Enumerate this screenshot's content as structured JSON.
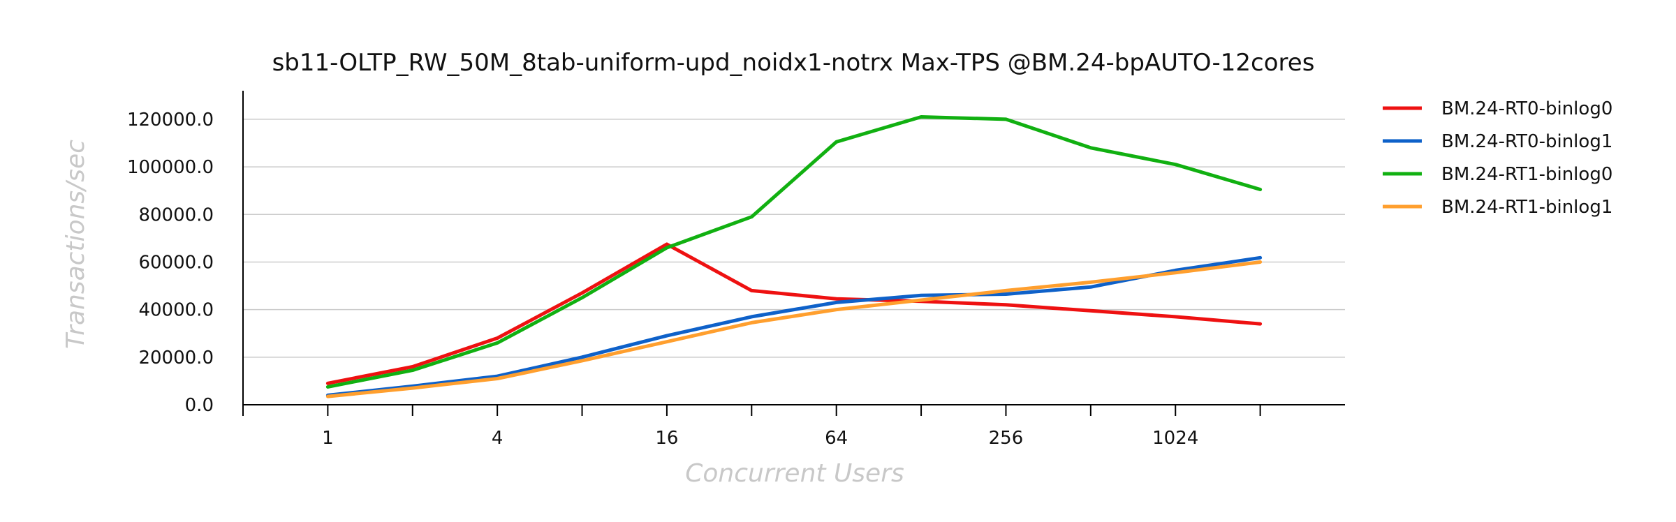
{
  "chart_data": {
    "type": "line",
    "title": "sb11-OLTP_RW_50M_8tab-uniform-upd_noidx1-notrx Max-TPS @BM.24-bpAUTO-12cores",
    "xlabel": "Concurrent Users",
    "ylabel": "Transactions/sec",
    "x": [
      1,
      2,
      4,
      8,
      16,
      32,
      64,
      128,
      256,
      512,
      1024,
      2048
    ],
    "x_scale": "log2",
    "xlim": [
      0.5,
      4096
    ],
    "x_ticks": [
      1,
      4,
      16,
      64,
      256,
      1024
    ],
    "x_tick_labels": [
      "1",
      "4",
      "16",
      "64",
      "256",
      "1024"
    ],
    "ylim": [
      0,
      132000
    ],
    "y_ticks": [
      0,
      20000,
      40000,
      60000,
      80000,
      100000,
      120000
    ],
    "y_tick_labels": [
      "0.0",
      "20000.0",
      "40000.0",
      "60000.0",
      "80000.0",
      "100000.0",
      "120000.0"
    ],
    "grid": true,
    "legend_position": "right",
    "series": [
      {
        "name": "BM.24-RT0-binlog0",
        "color": "#ee1111",
        "values": [
          9000,
          16000,
          28000,
          47000,
          67500,
          48000,
          44500,
          43500,
          42000,
          39500,
          37000,
          34000
        ]
      },
      {
        "name": "BM.24-RT0-binlog1",
        "color": "#0e61c9",
        "values": [
          4000,
          7800,
          12000,
          20000,
          29000,
          37000,
          43000,
          46000,
          46500,
          49500,
          56500,
          61800
        ]
      },
      {
        "name": "BM.24-RT1-binlog0",
        "color": "#11b011",
        "values": [
          7500,
          14500,
          26000,
          45000,
          66000,
          79000,
          110500,
          121000,
          120000,
          108000,
          101000,
          90500
        ]
      },
      {
        "name": "BM.24-RT1-binlog1",
        "color": "#ff9f2e",
        "values": [
          3500,
          7000,
          11000,
          18500,
          26500,
          34500,
          40000,
          44000,
          48000,
          51500,
          55500,
          60000
        ]
      }
    ]
  }
}
